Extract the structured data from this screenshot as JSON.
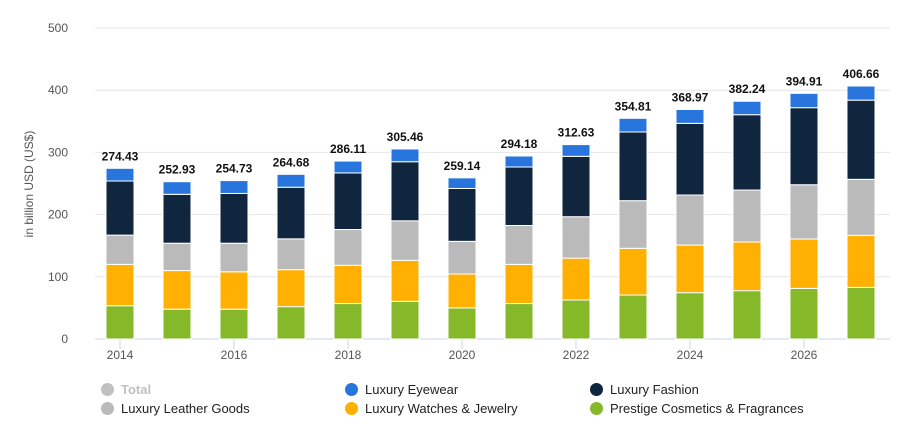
{
  "chart_data": {
    "type": "bar",
    "stacked": true,
    "title": "",
    "xlabel": "",
    "ylabel": "in billion USD (US$)",
    "ylim": [
      0,
      500
    ],
    "yticks": [
      0,
      100,
      200,
      300,
      400,
      500
    ],
    "grid": true,
    "legend_position": "bottom",
    "categories": [
      2014,
      2015,
      2016,
      2017,
      2018,
      2019,
      2020,
      2021,
      2022,
      2023,
      2024,
      2025,
      2026,
      2027
    ],
    "xtick_labels": [
      "2014",
      "2016",
      "2018",
      "2020",
      "2022",
      "2024",
      "2026"
    ],
    "totals": [
      274.43,
      252.93,
      254.73,
      264.68,
      286.11,
      305.46,
      259.14,
      294.18,
      312.63,
      354.81,
      368.97,
      382.24,
      394.91,
      406.66
    ],
    "total_labels": [
      "274.43",
      "252.93",
      "254.73",
      "264.68",
      "286.11",
      "305.46",
      "259.14",
      "294.18",
      "312.63",
      "354.81",
      "368.97",
      "382.24",
      "394.91",
      "406.66"
    ],
    "series": [
      {
        "name": "Prestige Cosmetics & Fragrances",
        "color": "#86b929",
        "values": [
          53.5,
          48,
          48,
          52,
          57,
          60.5,
          50,
          57,
          62.7,
          70.7,
          74.5,
          77.7,
          81.4,
          83
        ]
      },
      {
        "name": "Luxury Watches & Jewelry",
        "color": "#ffb000",
        "values": [
          66.5,
          62,
          60,
          59.5,
          61.5,
          66,
          54.5,
          63,
          67.3,
          75.1,
          76.5,
          78.3,
          79.4,
          83.7
        ]
      },
      {
        "name": "Luxury Leather Goods",
        "color": "#bababa",
        "values": [
          47,
          44,
          46,
          49.5,
          57.5,
          63.5,
          52.5,
          62.5,
          66.6,
          76.6,
          80.5,
          83.5,
          87.2,
          90
        ]
      },
      {
        "name": "Luxury Fashion",
        "color": "#0f263e",
        "values": [
          87,
          78.6,
          80,
          83,
          91,
          95,
          85,
          94,
          97.1,
          110.4,
          115.2,
          121.1,
          123.9,
          127.3
        ]
      },
      {
        "name": "Luxury Eyewear",
        "color": "#2876dd",
        "values": [
          20.4,
          20.3,
          20.7,
          20.7,
          19.1,
          20.5,
          17.1,
          17.7,
          18.9,
          22,
          22.3,
          21.6,
          23,
          22.7
        ]
      }
    ]
  },
  "legend": [
    {
      "label": "Total",
      "color": "#c0c0c0",
      "disabled": true
    },
    {
      "label": "Luxury Eyewear",
      "color": "#2876dd"
    },
    {
      "label": "Luxury Fashion",
      "color": "#0f263e"
    },
    {
      "label": "Luxury Leather Goods",
      "color": "#bababa"
    },
    {
      "label": "Luxury Watches & Jewelry",
      "color": "#ffb000"
    },
    {
      "label": "Prestige Cosmetics & Fragrances",
      "color": "#86b929"
    }
  ]
}
